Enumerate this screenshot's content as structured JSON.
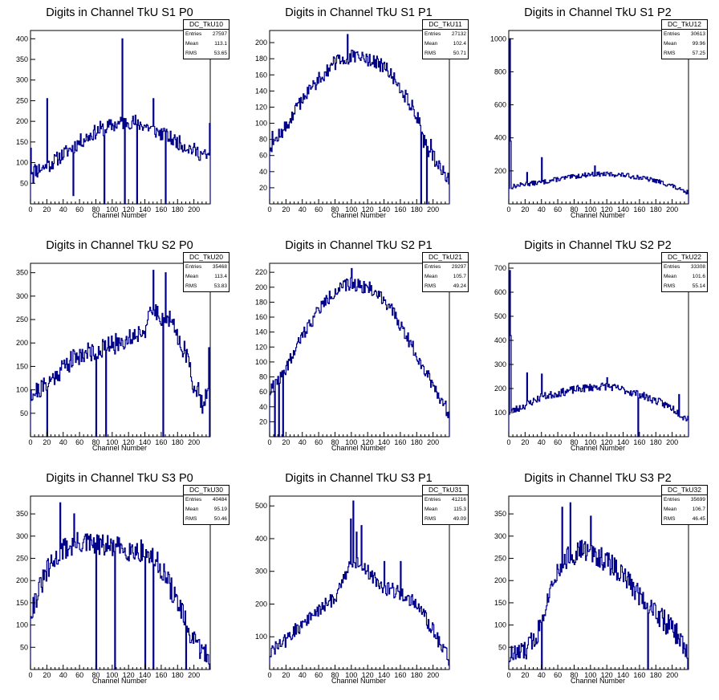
{
  "chart_data": [
    {
      "type": "histogram",
      "title": "Digits in Channel TkU S1 P0",
      "xlabel": "Channel Number",
      "xlim": [
        0,
        220
      ],
      "ylim": [
        0,
        420
      ],
      "xticks": [
        "0",
        "20",
        "40",
        "60",
        "80",
        "100",
        "120",
        "140",
        "160",
        "180",
        "200"
      ],
      "yticks": [
        "50",
        "100",
        "150",
        "200",
        "250",
        "300",
        "350",
        "400"
      ],
      "stats": {
        "name": "DC_TkU10",
        "rows": [
          {
            "label": "Entries",
            "value": "27597"
          },
          {
            "label": "Mean",
            "value": "113.1"
          },
          {
            "label": "RMS",
            "value": "53.65"
          }
        ]
      },
      "profile": [
        [
          0,
          80
        ],
        [
          20,
          90
        ],
        [
          60,
          150
        ],
        [
          80,
          175
        ],
        [
          100,
          190
        ],
        [
          120,
          200
        ],
        [
          140,
          190
        ],
        [
          160,
          170
        ],
        [
          200,
          130
        ],
        [
          220,
          110
        ]
      ],
      "spikes": [
        [
          0,
          135
        ],
        [
          3,
          50
        ],
        [
          8,
          65
        ],
        [
          20,
          255
        ],
        [
          52,
          20
        ],
        [
          85,
          200
        ],
        [
          90,
          0
        ],
        [
          112,
          400
        ],
        [
          115,
          0
        ],
        [
          128,
          215
        ],
        [
          130,
          0
        ],
        [
          150,
          255
        ],
        [
          165,
          0
        ],
        [
          219,
          195
        ]
      ],
      "noise": 18,
      "seed": 11
    },
    {
      "type": "histogram",
      "title": "Digits in Channel TkU S1 P1",
      "xlabel": "Channel Number",
      "xlim": [
        0,
        220
      ],
      "ylim": [
        0,
        215
      ],
      "xticks": [
        "0",
        "20",
        "40",
        "60",
        "80",
        "100",
        "120",
        "140",
        "160",
        "180",
        "200"
      ],
      "yticks": [
        "20",
        "40",
        "60",
        "80",
        "100",
        "120",
        "140",
        "160",
        "180",
        "200"
      ],
      "stats": {
        "name": "DC_TkU11",
        "rows": [
          {
            "label": "Entries",
            "value": "27132"
          },
          {
            "label": "Mean",
            "value": "102.4"
          },
          {
            "label": "RMS",
            "value": "50.71"
          }
        ]
      },
      "profile": [
        [
          0,
          70
        ],
        [
          20,
          95
        ],
        [
          40,
          130
        ],
        [
          60,
          155
        ],
        [
          80,
          175
        ],
        [
          100,
          182
        ],
        [
          120,
          180
        ],
        [
          140,
          170
        ],
        [
          160,
          145
        ],
        [
          180,
          110
        ],
        [
          195,
          65
        ],
        [
          210,
          45
        ],
        [
          220,
          30
        ]
      ],
      "spikes": [
        [
          3,
          90
        ],
        [
          40,
          125
        ],
        [
          95,
          210
        ],
        [
          185,
          0
        ],
        [
          188,
          70
        ],
        [
          192,
          0
        ],
        [
          197,
          80
        ]
      ],
      "noise": 9,
      "seed": 12
    },
    {
      "type": "histogram",
      "title": "Digits in Channel TkU S1 P2",
      "xlabel": "Channel Number",
      "xlim": [
        0,
        220
      ],
      "ylim": [
        0,
        1050
      ],
      "xticks": [
        "0",
        "20",
        "40",
        "60",
        "80",
        "100",
        "120",
        "140",
        "160",
        "180",
        "200"
      ],
      "yticks": [
        "200",
        "400",
        "600",
        "800",
        "1000"
      ],
      "stats": {
        "name": "DC_TkU12",
        "rows": [
          {
            "label": "Entries",
            "value": "30613"
          },
          {
            "label": "Mean",
            "value": "99.96"
          },
          {
            "label": "RMS",
            "value": "57.25"
          }
        ]
      },
      "profile": [
        [
          0,
          100
        ],
        [
          20,
          120
        ],
        [
          40,
          130
        ],
        [
          60,
          150
        ],
        [
          80,
          165
        ],
        [
          100,
          180
        ],
        [
          120,
          180
        ],
        [
          140,
          175
        ],
        [
          160,
          160
        ],
        [
          180,
          140
        ],
        [
          200,
          110
        ],
        [
          215,
          70
        ]
      ],
      "spikes": [
        [
          1,
          1000
        ],
        [
          2,
          380
        ],
        [
          22,
          190
        ],
        [
          40,
          280
        ],
        [
          105,
          230
        ]
      ],
      "noise": 14,
      "seed": 13
    },
    {
      "type": "histogram",
      "title": "Digits in Channel TkU S2 P0",
      "xlabel": "Channel Number",
      "xlim": [
        0,
        220
      ],
      "ylim": [
        0,
        370
      ],
      "xticks": [
        "0",
        "20",
        "40",
        "60",
        "80",
        "100",
        "120",
        "140",
        "160",
        "180",
        "200"
      ],
      "yticks": [
        "50",
        "100",
        "150",
        "200",
        "250",
        "300",
        "350"
      ],
      "stats": {
        "name": "DC_TkU20",
        "rows": [
          {
            "label": "Entries",
            "value": "35468"
          },
          {
            "label": "Mean",
            "value": "113.4"
          },
          {
            "label": "RMS",
            "value": "53.83"
          }
        ]
      },
      "profile": [
        [
          0,
          90
        ],
        [
          20,
          110
        ],
        [
          40,
          150
        ],
        [
          60,
          175
        ],
        [
          80,
          185
        ],
        [
          100,
          195
        ],
        [
          120,
          210
        ],
        [
          140,
          230
        ],
        [
          150,
          270
        ],
        [
          170,
          250
        ],
        [
          190,
          180
        ],
        [
          200,
          110
        ],
        [
          210,
          80
        ],
        [
          220,
          100
        ]
      ],
      "spikes": [
        [
          0,
          100
        ],
        [
          20,
          0
        ],
        [
          80,
          0
        ],
        [
          92,
          0
        ],
        [
          150,
          355
        ],
        [
          162,
          0
        ],
        [
          165,
          350
        ],
        [
          210,
          50
        ],
        [
          218,
          190
        ],
        [
          219,
          0
        ]
      ],
      "noise": 22,
      "seed": 21
    },
    {
      "type": "histogram",
      "title": "Digits in Channel TkU S2 P1",
      "xlabel": "Channel Number",
      "xlim": [
        0,
        220
      ],
      "ylim": [
        0,
        232
      ],
      "xticks": [
        "0",
        "20",
        "40",
        "60",
        "80",
        "100",
        "120",
        "140",
        "160",
        "180",
        "200"
      ],
      "yticks": [
        "20",
        "40",
        "60",
        "80",
        "100",
        "120",
        "140",
        "160",
        "180",
        "200",
        "220"
      ],
      "stats": {
        "name": "DC_TkU21",
        "rows": [
          {
            "label": "Entries",
            "value": "29297"
          },
          {
            "label": "Mean",
            "value": "105.7"
          },
          {
            "label": "RMS",
            "value": "49.24"
          }
        ]
      },
      "profile": [
        [
          0,
          60
        ],
        [
          10,
          75
        ],
        [
          20,
          90
        ],
        [
          40,
          135
        ],
        [
          60,
          170
        ],
        [
          80,
          195
        ],
        [
          100,
          205
        ],
        [
          120,
          200
        ],
        [
          140,
          185
        ],
        [
          160,
          150
        ],
        [
          180,
          110
        ],
        [
          200,
          70
        ],
        [
          220,
          30
        ]
      ],
      "spikes": [
        [
          4,
          75
        ],
        [
          6,
          0
        ],
        [
          9,
          70
        ],
        [
          11,
          0
        ],
        [
          14,
          80
        ],
        [
          16,
          0
        ],
        [
          18,
          85
        ],
        [
          100,
          225
        ]
      ],
      "noise": 9,
      "seed": 22
    },
    {
      "type": "histogram",
      "title": "Digits in Channel TkU S2 P2",
      "xlabel": "Channel Number",
      "xlim": [
        0,
        220
      ],
      "ylim": [
        0,
        720
      ],
      "xticks": [
        "0",
        "20",
        "40",
        "60",
        "80",
        "100",
        "120",
        "140",
        "160",
        "180",
        "200"
      ],
      "yticks": [
        "100",
        "200",
        "300",
        "400",
        "500",
        "600",
        "700"
      ],
      "stats": {
        "name": "DC_TkU22",
        "rows": [
          {
            "label": "Entries",
            "value": "33308"
          },
          {
            "label": "Mean",
            "value": "101.6"
          },
          {
            "label": "RMS",
            "value": "55.14"
          }
        ]
      },
      "profile": [
        [
          0,
          100
        ],
        [
          20,
          130
        ],
        [
          40,
          165
        ],
        [
          60,
          180
        ],
        [
          80,
          195
        ],
        [
          100,
          205
        ],
        [
          120,
          210
        ],
        [
          140,
          195
        ],
        [
          160,
          175
        ],
        [
          180,
          150
        ],
        [
          200,
          120
        ],
        [
          215,
          80
        ]
      ],
      "spikes": [
        [
          1,
          690
        ],
        [
          2,
          420
        ],
        [
          22,
          265
        ],
        [
          40,
          260
        ],
        [
          120,
          245
        ],
        [
          158,
          0
        ],
        [
          208,
          175
        ]
      ],
      "noise": 16,
      "seed": 23
    },
    {
      "type": "histogram",
      "title": "Digits in Channel TkU S3 P0",
      "xlabel": "Channel Number",
      "xlim": [
        0,
        220
      ],
      "ylim": [
        0,
        390
      ],
      "xticks": [
        "0",
        "20",
        "40",
        "60",
        "80",
        "100",
        "120",
        "140",
        "160",
        "180",
        "200"
      ],
      "yticks": [
        "50",
        "100",
        "150",
        "200",
        "250",
        "300",
        "350"
      ],
      "stats": {
        "name": "DC_TkU30",
        "rows": [
          {
            "label": "Entries",
            "value": "40484"
          },
          {
            "label": "Mean",
            "value": "95.19"
          },
          {
            "label": "RMS",
            "value": "50.46"
          }
        ]
      },
      "profile": [
        [
          0,
          130
        ],
        [
          20,
          220
        ],
        [
          40,
          270
        ],
        [
          60,
          285
        ],
        [
          80,
          280
        ],
        [
          100,
          275
        ],
        [
          120,
          270
        ],
        [
          140,
          265
        ],
        [
          160,
          230
        ],
        [
          180,
          150
        ],
        [
          200,
          60
        ],
        [
          220,
          25
        ]
      ],
      "spikes": [
        [
          36,
          375
        ],
        [
          53,
          350
        ],
        [
          80,
          0
        ],
        [
          103,
          0
        ],
        [
          140,
          0
        ],
        [
          150,
          0
        ],
        [
          190,
          0
        ]
      ],
      "noise": 26,
      "seed": 31
    },
    {
      "type": "histogram",
      "title": "Digits in Channel TkU S3 P1",
      "xlabel": "Channel Number",
      "xlim": [
        0,
        220
      ],
      "ylim": [
        0,
        530
      ],
      "xticks": [
        "0",
        "20",
        "40",
        "60",
        "80",
        "100",
        "120",
        "140",
        "160",
        "180",
        "200"
      ],
      "yticks": [
        "100",
        "200",
        "300",
        "400",
        "500"
      ],
      "stats": {
        "name": "DC_TkU31",
        "rows": [
          {
            "label": "Entries",
            "value": "41216"
          },
          {
            "label": "Mean",
            "value": "115.3"
          },
          {
            "label": "RMS",
            "value": "49.09"
          }
        ]
      },
      "profile": [
        [
          0,
          50
        ],
        [
          20,
          90
        ],
        [
          40,
          140
        ],
        [
          60,
          180
        ],
        [
          80,
          220
        ],
        [
          90,
          280
        ],
        [
          100,
          320
        ],
        [
          110,
          330
        ],
        [
          120,
          300
        ],
        [
          140,
          250
        ],
        [
          160,
          235
        ],
        [
          180,
          200
        ],
        [
          200,
          120
        ],
        [
          220,
          30
        ]
      ],
      "spikes": [
        [
          99,
          460
        ],
        [
          102,
          515
        ],
        [
          106,
          420
        ],
        [
          112,
          440
        ],
        [
          140,
          330
        ],
        [
          160,
          330
        ]
      ],
      "noise": 22,
      "seed": 32
    },
    {
      "type": "histogram",
      "title": "Digits in Channel TkU S3 P2",
      "xlabel": "Channel Number",
      "xlim": [
        0,
        220
      ],
      "ylim": [
        0,
        390
      ],
      "xticks": [
        "0",
        "20",
        "40",
        "60",
        "80",
        "100",
        "120",
        "140",
        "160",
        "180",
        "200"
      ],
      "yticks": [
        "50",
        "100",
        "150",
        "200",
        "250",
        "300",
        "350"
      ],
      "stats": {
        "name": "DC_TkU32",
        "rows": [
          {
            "label": "Entries",
            "value": "35699"
          },
          {
            "label": "Mean",
            "value": "106.7"
          },
          {
            "label": "RMS",
            "value": "46.45"
          }
        ]
      },
      "profile": [
        [
          0,
          30
        ],
        [
          20,
          40
        ],
        [
          35,
          80
        ],
        [
          45,
          150
        ],
        [
          55,
          210
        ],
        [
          70,
          250
        ],
        [
          90,
          270
        ],
        [
          110,
          255
        ],
        [
          130,
          230
        ],
        [
          150,
          190
        ],
        [
          170,
          150
        ],
        [
          190,
          110
        ],
        [
          210,
          70
        ],
        [
          220,
          20
        ]
      ],
      "spikes": [
        [
          40,
          0
        ],
        [
          47,
          170
        ],
        [
          65,
          365
        ],
        [
          75,
          375
        ],
        [
          100,
          345
        ],
        [
          170,
          0
        ]
      ],
      "noise": 26,
      "seed": 33
    }
  ],
  "colors": {
    "line": "#00008b",
    "axis": "#000000",
    "background": "#ffffff"
  }
}
